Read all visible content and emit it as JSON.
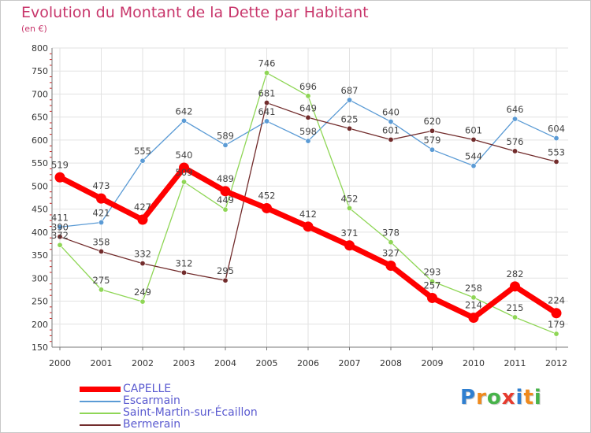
{
  "header": {
    "title": "Evolution du Montant de la Dette par Habitant",
    "subtitle": "(en €)"
  },
  "logo": {
    "text": "Proxiti",
    "letters": [
      "P",
      "r",
      "o",
      "x",
      "i",
      "t",
      "i"
    ],
    "colors": [
      "#2f7fd0",
      "#f08a1c",
      "#47b34a",
      "#e63b2e",
      "#2f7fd0",
      "#f08a1c",
      "#47b34a"
    ]
  },
  "chart_data": {
    "type": "line",
    "title": "Evolution du Montant de la Dette par Habitant",
    "ylabel": "(en €)",
    "xlabel": "",
    "x": [
      "2000",
      "2001",
      "2002",
      "2003",
      "2004",
      "2005",
      "2006",
      "2007",
      "2008",
      "2009",
      "2010",
      "2011",
      "2012"
    ],
    "ylim": [
      150,
      800
    ],
    "yticks": [
      "150",
      "200",
      "250",
      "300",
      "350",
      "400",
      "450",
      "500",
      "550",
      "600",
      "650",
      "700",
      "750",
      "800"
    ],
    "grid": true,
    "legend": "bottom-left",
    "series": [
      {
        "name": "CAPELLE",
        "color": "#ff0000",
        "values": [
          519,
          473,
          427,
          540,
          489,
          452,
          412,
          371,
          327,
          257,
          214,
          282,
          224
        ]
      },
      {
        "name": "Escarmain",
        "color": "#5b9bd5",
        "values": [
          411,
          421,
          555,
          642,
          589,
          641,
          598,
          687,
          640,
          579,
          544,
          646,
          604
        ]
      },
      {
        "name": "Saint-Martin-sur-Écaillon",
        "color": "#8fd656",
        "values": [
          372,
          275,
          249,
          509,
          449,
          746,
          696,
          452,
          378,
          293,
          258,
          215,
          179
        ]
      },
      {
        "name": "Bermerain",
        "color": "#722c2c",
        "values": [
          390,
          358,
          332,
          312,
          295,
          681,
          649,
          625,
          601,
          620,
          601,
          576,
          553
        ]
      }
    ]
  }
}
